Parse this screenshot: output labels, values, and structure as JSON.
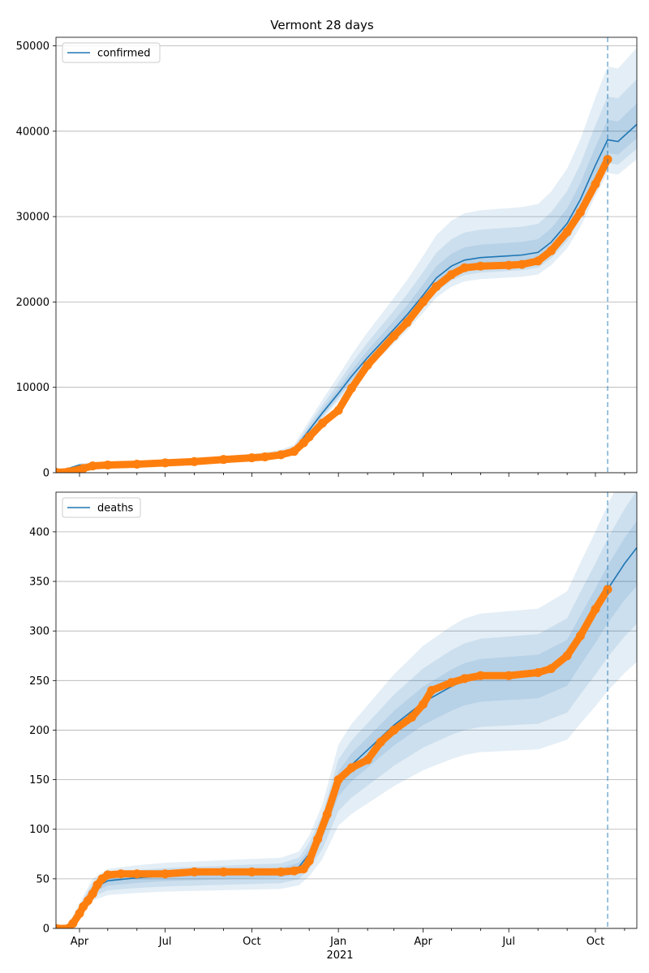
{
  "figure": {
    "title": "Vermont 28 days",
    "year_label": "2021"
  },
  "colors": {
    "model_line": "#1f77b4",
    "band": "#1f77b4",
    "observed": "#ff7f0e",
    "grid": "#b0b0b0",
    "forecast_marker": "#1f77b4"
  },
  "chart_data": [
    {
      "type": "line",
      "legend": {
        "entries": [
          "confirmed"
        ],
        "placement": "upper-left"
      },
      "xlim": [
        "2020-03-07",
        "2021-11-14"
      ],
      "ylim": [
        0,
        51000
      ],
      "yticks": [
        0,
        10000,
        20000,
        30000,
        40000,
        50000
      ],
      "grid": "y",
      "forecast_start": "2021-10-14",
      "series": [
        {
          "name": "confirmed",
          "style": "model-line-with-uncertainty-bands",
          "x": [
            "2020-03-07",
            "2020-04-01",
            "2020-05-01",
            "2020-06-01",
            "2020-07-01",
            "2020-08-01",
            "2020-09-01",
            "2020-10-01",
            "2020-11-01",
            "2020-11-15",
            "2020-12-01",
            "2020-12-15",
            "2021-01-01",
            "2021-01-15",
            "2021-02-01",
            "2021-03-01",
            "2021-03-15",
            "2021-04-01",
            "2021-04-15",
            "2021-05-01",
            "2021-05-15",
            "2021-06-01",
            "2021-07-01",
            "2021-07-15",
            "2021-08-01",
            "2021-08-15",
            "2021-09-01",
            "2021-09-15",
            "2021-10-01",
            "2021-10-14",
            "2021-10-25",
            "2021-11-14"
          ],
          "values": [
            50,
            900,
            1050,
            1150,
            1250,
            1400,
            1600,
            1800,
            2200,
            2700,
            5000,
            7000,
            9300,
            11300,
            13500,
            16800,
            18500,
            20800,
            22800,
            24200,
            24900,
            25200,
            25400,
            25500,
            25800,
            27000,
            29200,
            32000,
            36000,
            39000,
            38800,
            40800
          ],
          "bands_relative": [
            {
              "level": "outer",
              "upper": 1.22,
              "lower": 0.9
            },
            {
              "level": "middle",
              "upper": 1.13,
              "lower": 0.93
            },
            {
              "level": "inner",
              "upper": 1.06,
              "lower": 0.96
            }
          ]
        },
        {
          "name": "observed confirmed",
          "style": "markers",
          "x": [
            "2020-03-07",
            "2020-03-20",
            "2020-04-05",
            "2020-04-15",
            "2020-05-01",
            "2020-06-01",
            "2020-07-01",
            "2020-08-01",
            "2020-09-01",
            "2020-10-01",
            "2020-10-15",
            "2020-11-01",
            "2020-11-15",
            "2020-11-25",
            "2020-12-01",
            "2020-12-15",
            "2021-01-01",
            "2021-01-15",
            "2021-02-01",
            "2021-03-01",
            "2021-03-15",
            "2021-04-01",
            "2021-04-15",
            "2021-05-01",
            "2021-05-15",
            "2021-06-01",
            "2021-07-01",
            "2021-07-15",
            "2021-08-01",
            "2021-08-15",
            "2021-09-01",
            "2021-09-15",
            "2021-10-01",
            "2021-10-14"
          ],
          "values": [
            50,
            100,
            500,
            800,
            900,
            1000,
            1150,
            1300,
            1550,
            1750,
            1850,
            2100,
            2500,
            3500,
            4200,
            5800,
            7300,
            9900,
            12600,
            16000,
            17600,
            20000,
            21800,
            23200,
            24000,
            24200,
            24300,
            24400,
            24800,
            26000,
            28200,
            30500,
            33800,
            36700
          ]
        }
      ]
    },
    {
      "type": "line",
      "legend": {
        "entries": [
          "deaths"
        ],
        "placement": "upper-left"
      },
      "xlim": [
        "2020-03-07",
        "2021-11-14"
      ],
      "ylim": [
        0,
        440
      ],
      "yticks": [
        0,
        50,
        100,
        150,
        200,
        250,
        300,
        350,
        400
      ],
      "grid": "y",
      "forecast_start": "2021-10-14",
      "xticks": [
        "Apr",
        "Jul",
        "Oct",
        "Jan",
        "Apr",
        "Jul",
        "Oct"
      ],
      "xtick_dates": [
        "2020-04-01",
        "2020-07-01",
        "2020-10-01",
        "2021-01-01",
        "2021-04-01",
        "2021-07-01",
        "2021-10-01"
      ],
      "series": [
        {
          "name": "deaths",
          "style": "model-line-with-uncertainty-bands",
          "x": [
            "2020-03-07",
            "2020-03-20",
            "2020-04-01",
            "2020-04-15",
            "2020-05-01",
            "2020-06-01",
            "2020-07-01",
            "2020-08-01",
            "2020-09-01",
            "2020-10-01",
            "2020-11-01",
            "2020-11-20",
            "2020-12-01",
            "2020-12-15",
            "2021-01-01",
            "2021-01-15",
            "2021-02-01",
            "2021-03-01",
            "2021-04-01",
            "2021-05-01",
            "2021-05-15",
            "2021-06-01",
            "2021-07-01",
            "2021-08-01",
            "2021-09-01",
            "2021-09-15",
            "2021-10-01",
            "2021-10-14",
            "2021-11-01",
            "2021-11-14"
          ],
          "values": [
            0,
            3,
            20,
            40,
            48,
            51,
            53,
            54,
            55,
            56,
            57,
            62,
            75,
            100,
            148,
            165,
            180,
            205,
            228,
            244,
            250,
            254,
            256,
            258,
            272,
            295,
            320,
            342,
            368,
            384
          ],
          "bands_relative": [
            {
              "level": "outer",
              "upper": 1.25,
              "lower": 0.7
            },
            {
              "level": "middle",
              "upper": 1.15,
              "lower": 0.8
            },
            {
              "level": "inner",
              "upper": 1.07,
              "lower": 0.9
            }
          ]
        },
        {
          "name": "observed deaths",
          "style": "markers",
          "x": [
            "2020-03-07",
            "2020-03-20",
            "2020-03-25",
            "2020-04-01",
            "2020-04-05",
            "2020-04-10",
            "2020-04-15",
            "2020-04-20",
            "2020-04-25",
            "2020-05-01",
            "2020-05-15",
            "2020-06-01",
            "2020-07-01",
            "2020-08-01",
            "2020-09-01",
            "2020-10-01",
            "2020-11-01",
            "2020-11-15",
            "2020-11-25",
            "2020-12-01",
            "2020-12-10",
            "2020-12-20",
            "2021-01-01",
            "2021-01-15",
            "2021-02-01",
            "2021-02-15",
            "2021-03-01",
            "2021-03-20",
            "2021-04-01",
            "2021-04-10",
            "2021-05-01",
            "2021-05-15",
            "2021-06-01",
            "2021-07-01",
            "2021-08-01",
            "2021-08-15",
            "2021-09-01",
            "2021-09-15",
            "2021-10-01",
            "2021-10-14"
          ],
          "values": [
            0,
            0,
            5,
            15,
            22,
            28,
            35,
            44,
            50,
            54,
            55,
            55,
            55,
            57,
            57,
            57,
            57,
            58,
            60,
            68,
            90,
            115,
            150,
            162,
            170,
            188,
            200,
            213,
            226,
            240,
            248,
            252,
            255,
            255,
            258,
            262,
            275,
            295,
            322,
            342
          ]
        }
      ]
    }
  ]
}
